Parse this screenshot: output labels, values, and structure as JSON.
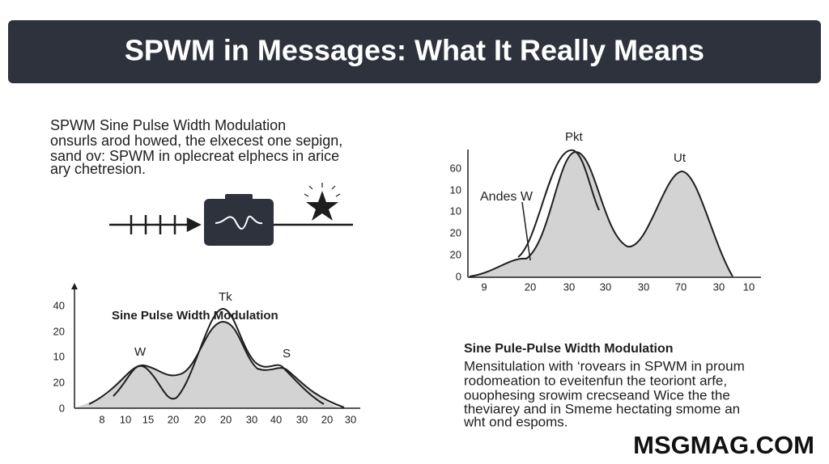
{
  "header": {
    "title": "SPWM in Messages: What It Really Means"
  },
  "intro": {
    "lines": [
      "SPWM Sine Pulse Width Modulation",
      "onsurls arod howed, the elxecest one sepign,",
      "sand ov: SPWM in oplecreat elphecs in arice",
      "ary chetresion."
    ]
  },
  "chart_left": {
    "title": "Sine Pulse Width Modulation",
    "peak_labels": [
      "Tk",
      "W",
      "S"
    ],
    "y_labels": [
      "40",
      "20",
      "10",
      "20",
      "0"
    ],
    "x_labels": [
      "8",
      "10",
      "15",
      "20",
      "20",
      "20",
      "30",
      "40",
      "30",
      "20",
      "30"
    ]
  },
  "chart_right": {
    "peak_labels": [
      "Pkt",
      "Ut",
      "Andes W"
    ],
    "y_labels": [
      "60",
      "10",
      "10",
      "20",
      "20",
      "0"
    ],
    "x_labels": [
      "9",
      "20",
      "30",
      "30",
      "30",
      "70",
      "30",
      "10"
    ]
  },
  "caption": {
    "title": "Sine Pule-Pulse Width Modulation",
    "lines": [
      "Mensitulation with ‘rovears in SPWM in proum",
      "rodomeation to eveitenfun the teoriont arfe,",
      "ouophesing srowim crecseand Wice the the",
      "theviarey and in Smeme hectating smome an",
      "wht ond espoms."
    ]
  },
  "brand": "MSGMAG.COM"
}
